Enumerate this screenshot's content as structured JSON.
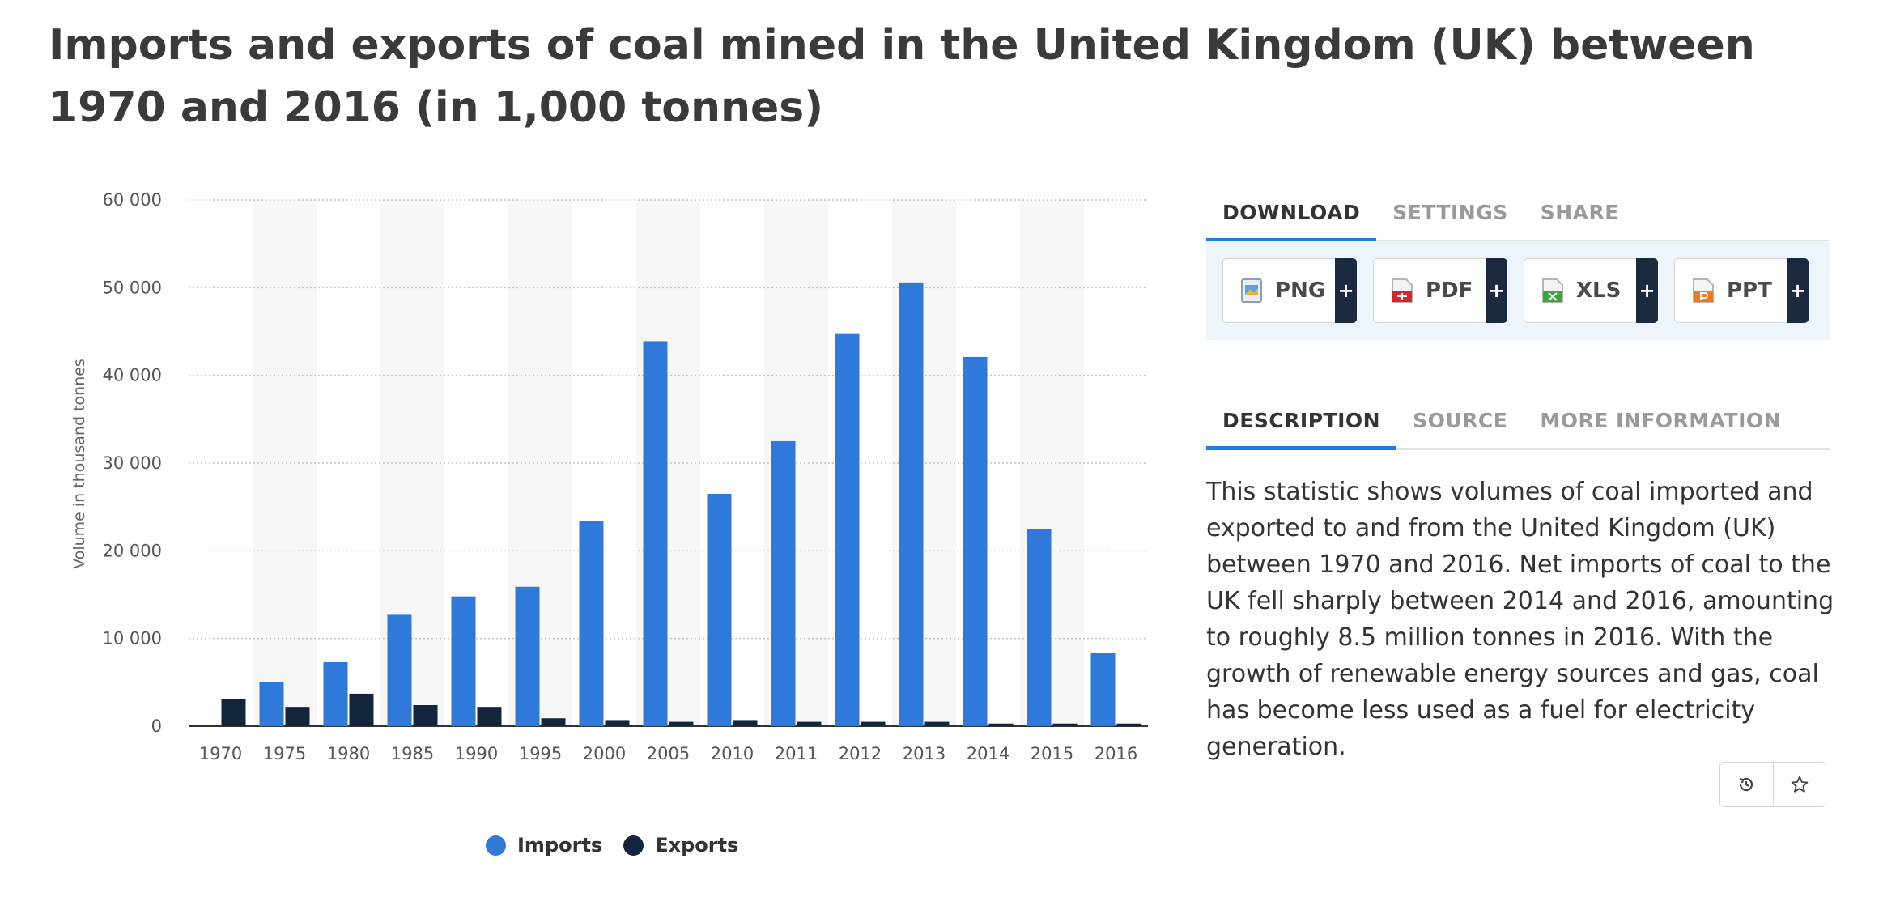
{
  "page": {
    "title": "Imports and exports of coal mined in the United Kingdom (UK) between 1970 and 2016 (in 1,000 tonnes)"
  },
  "chart_data": {
    "type": "bar",
    "title": "Imports and exports of coal mined in the United Kingdom (UK) between 1970 and 2016 (in 1,000 tonnes)",
    "xlabel": "",
    "ylabel": "Volume in thousand tonnes",
    "categories": [
      "1970",
      "1975",
      "1980",
      "1985",
      "1990",
      "1995",
      "2000",
      "2005",
      "2010",
      "2011",
      "2012",
      "2013",
      "2014",
      "2015",
      "2016"
    ],
    "series": [
      {
        "name": "Imports",
        "color": "#2f7ad9",
        "values": [
          0,
          5000,
          7300,
          12700,
          14800,
          15900,
          23400,
          43900,
          26500,
          32500,
          44800,
          50600,
          42100,
          22500,
          8400
        ]
      },
      {
        "name": "Exports",
        "color": "#13253d",
        "values": [
          3100,
          2200,
          3700,
          2400,
          2200,
          900,
          700,
          500,
          700,
          500,
          500,
          500,
          300,
          300,
          300
        ]
      }
    ],
    "ylim": [
      0,
      60000
    ],
    "yticks": [
      0,
      10000,
      20000,
      30000,
      40000,
      50000,
      60000
    ],
    "ytick_labels": [
      "0",
      "10 000",
      "20 000",
      "30 000",
      "40 000",
      "50 000",
      "60 000"
    ],
    "grid": true,
    "legend_position": "bottom-center"
  },
  "legend": {
    "items": [
      {
        "label": "Imports",
        "color": "#2f7ad9"
      },
      {
        "label": "Exports",
        "color": "#13253d"
      }
    ]
  },
  "download_tabs": {
    "download": "DOWNLOAD",
    "settings": "SETTINGS",
    "share": "SHARE"
  },
  "download_buttons": {
    "png": "PNG",
    "pdf": "PDF",
    "xls": "XLS",
    "ppt": "PPT",
    "plus": "+"
  },
  "info_tabs": {
    "description": "DESCRIPTION",
    "source": "SOURCE",
    "more": "MORE INFORMATION"
  },
  "description": {
    "text": "This statistic shows volumes of coal imported and exported to and from the United Kingdom (UK) between 1970 and 2016. Net imports of coal to the UK fell sharply between 2014 and 2016, amounting to roughly 8.5 million tonnes in 2016. With the growth of renewable energy sources and gas, coal has become less used as a fuel for electricity generation."
  },
  "actions": {
    "history_icon": "history-icon",
    "star_icon": "star-icon"
  },
  "colors": {
    "accent": "#1f7ce0",
    "imports": "#2f7ad9",
    "exports": "#13253d",
    "dark_button": "#1b2a3e"
  }
}
